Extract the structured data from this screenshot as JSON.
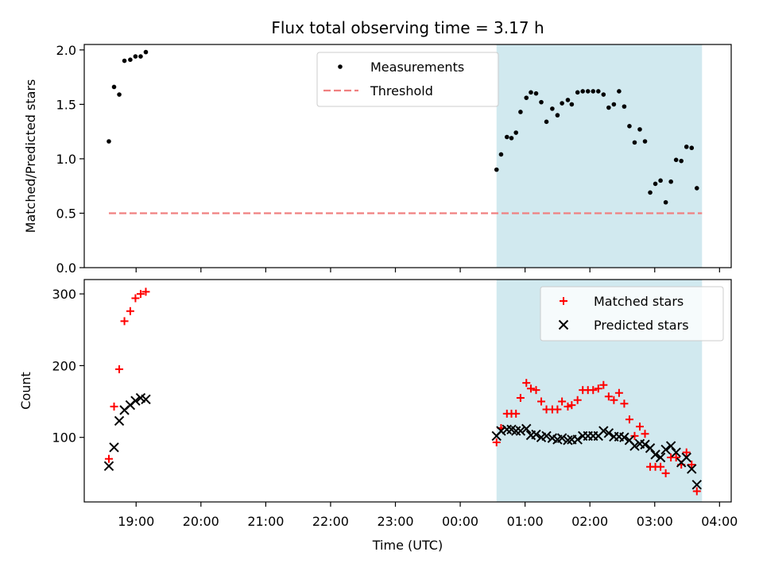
{
  "chart_data": {
    "title": "Flux total observing time = 3.17 h",
    "x_axis": {
      "label": "Time (UTC)",
      "tick_labels": [
        "19:00",
        "20:00",
        "21:00",
        "22:00",
        "23:00",
        "00:00",
        "01:00",
        "02:00",
        "03:00",
        "04:00"
      ],
      "tick_values_hours": [
        19,
        20,
        21,
        22,
        23,
        24,
        25,
        26,
        27,
        28
      ],
      "range_hours": [
        18.2,
        28.18
      ]
    },
    "shaded_interval_hours": [
      24.56,
      27.73
    ],
    "shade_color": "#d1e9ef",
    "panels": [
      {
        "type": "scatter",
        "ylabel": "Matched/Predicted stars",
        "ylim": [
          0,
          2.05
        ],
        "y_ticks": [
          0.0,
          0.5,
          1.0,
          1.5,
          2.0
        ],
        "y_tick_labels": [
          "0.0",
          "0.5",
          "1.0",
          "1.5",
          "2.0"
        ],
        "legend_position": "top-center",
        "series": [
          {
            "name": "Measurements",
            "marker": "dot",
            "color": "#000000",
            "points": [
              [
                18.58,
                1.16
              ],
              [
                18.66,
                1.66
              ],
              [
                18.74,
                1.59
              ],
              [
                18.82,
                1.9
              ],
              [
                18.91,
                1.91
              ],
              [
                18.99,
                1.94
              ],
              [
                19.07,
                1.94
              ],
              [
                19.15,
                1.98
              ],
              [
                24.56,
                0.9
              ],
              [
                24.63,
                1.04
              ],
              [
                24.72,
                1.2
              ],
              [
                24.79,
                1.19
              ],
              [
                24.86,
                1.24
              ],
              [
                24.93,
                1.43
              ],
              [
                25.02,
                1.56
              ],
              [
                25.09,
                1.61
              ],
              [
                25.17,
                1.6
              ],
              [
                25.25,
                1.52
              ],
              [
                25.33,
                1.34
              ],
              [
                25.42,
                1.46
              ],
              [
                25.5,
                1.4
              ],
              [
                25.57,
                1.51
              ],
              [
                25.66,
                1.54
              ],
              [
                25.72,
                1.5
              ],
              [
                25.81,
                1.61
              ],
              [
                25.89,
                1.62
              ],
              [
                25.97,
                1.62
              ],
              [
                26.05,
                1.62
              ],
              [
                26.13,
                1.62
              ],
              [
                26.21,
                1.59
              ],
              [
                26.29,
                1.47
              ],
              [
                26.37,
                1.5
              ],
              [
                26.45,
                1.62
              ],
              [
                26.53,
                1.48
              ],
              [
                26.61,
                1.3
              ],
              [
                26.69,
                1.15
              ],
              [
                26.77,
                1.27
              ],
              [
                26.85,
                1.16
              ],
              [
                26.93,
                0.69
              ],
              [
                27.01,
                0.77
              ],
              [
                27.09,
                0.8
              ],
              [
                27.17,
                0.6
              ],
              [
                27.25,
                0.79
              ],
              [
                27.33,
                0.99
              ],
              [
                27.41,
                0.98
              ],
              [
                27.49,
                1.11
              ],
              [
                27.57,
                1.1
              ],
              [
                27.65,
                0.73
              ]
            ]
          },
          {
            "name": "Threshold",
            "marker": "dashed-line",
            "color": "#f08080",
            "x_range": [
              18.58,
              27.73
            ],
            "value": 0.5
          }
        ]
      },
      {
        "type": "scatter",
        "ylabel": "Count",
        "ylim": [
          10,
          320
        ],
        "y_ticks": [
          100,
          200,
          300
        ],
        "y_tick_labels": [
          "100",
          "200",
          "300"
        ],
        "legend_position": "top-right",
        "series": [
          {
            "name": "Matched stars",
            "marker": "plus",
            "color": "#ff0000",
            "points": [
              [
                18.58,
                70
              ],
              [
                18.66,
                143
              ],
              [
                18.74,
                195
              ],
              [
                18.82,
                262
              ],
              [
                18.91,
                276
              ],
              [
                18.99,
                294
              ],
              [
                19.07,
                300
              ],
              [
                19.15,
                303
              ],
              [
                24.56,
                93
              ],
              [
                24.63,
                113
              ],
              [
                24.72,
                133
              ],
              [
                24.79,
                133
              ],
              [
                24.86,
                133
              ],
              [
                24.93,
                155
              ],
              [
                25.02,
                176
              ],
              [
                25.09,
                168
              ],
              [
                25.17,
                166
              ],
              [
                25.25,
                150
              ],
              [
                25.33,
                139
              ],
              [
                25.42,
                139
              ],
              [
                25.5,
                139
              ],
              [
                25.57,
                150
              ],
              [
                25.66,
                143
              ],
              [
                25.72,
                145
              ],
              [
                25.81,
                152
              ],
              [
                25.89,
                166
              ],
              [
                25.97,
                166
              ],
              [
                26.05,
                166
              ],
              [
                26.13,
                168
              ],
              [
                26.21,
                173
              ],
              [
                26.29,
                157
              ],
              [
                26.37,
                152
              ],
              [
                26.45,
                162
              ],
              [
                26.53,
                147
              ],
              [
                26.61,
                125
              ],
              [
                26.69,
                102
              ],
              [
                26.77,
                115
              ],
              [
                26.85,
                105
              ],
              [
                26.93,
                59
              ],
              [
                27.01,
                59
              ],
              [
                27.09,
                59
              ],
              [
                27.17,
                50
              ],
              [
                27.25,
                72
              ],
              [
                27.33,
                72
              ],
              [
                27.41,
                62
              ],
              [
                27.49,
                79
              ],
              [
                27.57,
                62
              ],
              [
                27.65,
                25
              ]
            ]
          },
          {
            "name": "Predicted stars",
            "marker": "x",
            "color": "#000000",
            "points": [
              [
                18.58,
                60
              ],
              [
                18.66,
                86
              ],
              [
                18.74,
                123
              ],
              [
                18.82,
                138
              ],
              [
                18.91,
                145
              ],
              [
                18.99,
                151
              ],
              [
                19.07,
                155
              ],
              [
                19.15,
                153
              ],
              [
                24.56,
                102
              ],
              [
                24.63,
                109
              ],
              [
                24.72,
                111
              ],
              [
                24.79,
                111
              ],
              [
                24.86,
                109
              ],
              [
                24.93,
                109
              ],
              [
                25.02,
                112
              ],
              [
                25.09,
                103
              ],
              [
                25.17,
                104
              ],
              [
                25.25,
                100
              ],
              [
                25.33,
                102
              ],
              [
                25.42,
                99
              ],
              [
                25.5,
                97
              ],
              [
                25.57,
                99
              ],
              [
                25.66,
                96
              ],
              [
                25.72,
                97
              ],
              [
                25.81,
                97
              ],
              [
                25.89,
                102
              ],
              [
                25.97,
                102
              ],
              [
                26.05,
                102
              ],
              [
                26.13,
                102
              ],
              [
                26.21,
                109
              ],
              [
                26.29,
                106
              ],
              [
                26.37,
                101
              ],
              [
                26.45,
                101
              ],
              [
                26.53,
                100
              ],
              [
                26.61,
                96
              ],
              [
                26.69,
                88
              ],
              [
                26.77,
                91
              ],
              [
                26.85,
                90
              ],
              [
                26.93,
                85
              ],
              [
                27.01,
                76
              ],
              [
                27.09,
                72
              ],
              [
                27.17,
                83
              ],
              [
                27.25,
                88
              ],
              [
                27.33,
                79
              ],
              [
                27.41,
                65
              ],
              [
                27.49,
                72
              ],
              [
                27.57,
                56
              ],
              [
                27.65,
                34
              ]
            ]
          }
        ]
      }
    ]
  }
}
